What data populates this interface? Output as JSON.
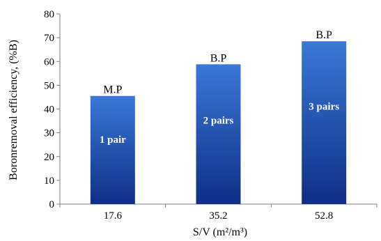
{
  "chart_data": {
    "type": "bar",
    "categories": [
      "17.6",
      "35.2",
      "52.8"
    ],
    "values": [
      45.5,
      58.8,
      68.5
    ],
    "top_labels": [
      "M.P",
      "B.P",
      "B.P"
    ],
    "inner_labels": [
      "1 pair",
      "2 pairs",
      "3 pairs"
    ],
    "xlabel": "S/V (m²/m³)",
    "ylabel": "Boronremoval efficiency, (%B)",
    "ylim": [
      0,
      80
    ],
    "yticks": [
      0,
      10,
      20,
      30,
      40,
      50,
      60,
      70,
      80
    ],
    "grid": false,
    "bar_color_top": "#3a78d8",
    "bar_color_bottom": "#0e2f86"
  }
}
